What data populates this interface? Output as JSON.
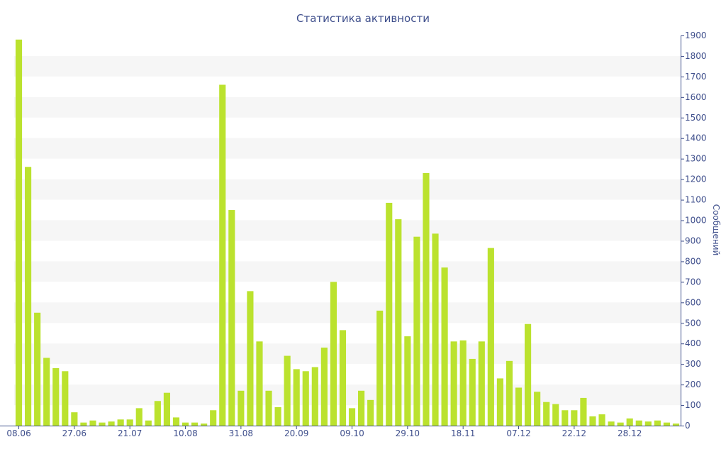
{
  "chart_data": {
    "type": "bar",
    "title": "Статистика активности",
    "xlabel": "",
    "ylabel": "Сообщений",
    "ylim": [
      0,
      1900
    ],
    "y_ticks": [
      0,
      100,
      200,
      300,
      400,
      500,
      600,
      700,
      800,
      900,
      1000,
      1100,
      1200,
      1300,
      1400,
      1500,
      1600,
      1700,
      1800,
      1900
    ],
    "y_axis_side": "right",
    "grid": "alternating horizontal bands",
    "legend": "none",
    "bar_color": "#bbe22e",
    "band_color": "#f6f6f6",
    "text_color": "#3f4f8c",
    "x_tick_labels": [
      "08.06",
      "27.06",
      "21.07",
      "10.08",
      "31.08",
      "20.09",
      "09.10",
      "29.10",
      "18.11",
      "07.12",
      "22.12",
      "28.12"
    ],
    "x_tick_bar_index": [
      0,
      6,
      12,
      18,
      24,
      30,
      36,
      42,
      48,
      54,
      60,
      66
    ],
    "values": [
      1880,
      1260,
      550,
      330,
      280,
      265,
      65,
      15,
      25,
      15,
      20,
      30,
      30,
      85,
      25,
      120,
      160,
      40,
      15,
      15,
      10,
      75,
      1660,
      1050,
      170,
      655,
      410,
      170,
      90,
      340,
      275,
      265,
      285,
      380,
      700,
      465,
      85,
      170,
      125,
      560,
      1085,
      1005,
      435,
      920,
      1230,
      935,
      770,
      410,
      415,
      325,
      410,
      865,
      230,
      315,
      185,
      495,
      165,
      115,
      105,
      75,
      75,
      135,
      45,
      55,
      20,
      15,
      35,
      25,
      20,
      25,
      15,
      10
    ]
  }
}
